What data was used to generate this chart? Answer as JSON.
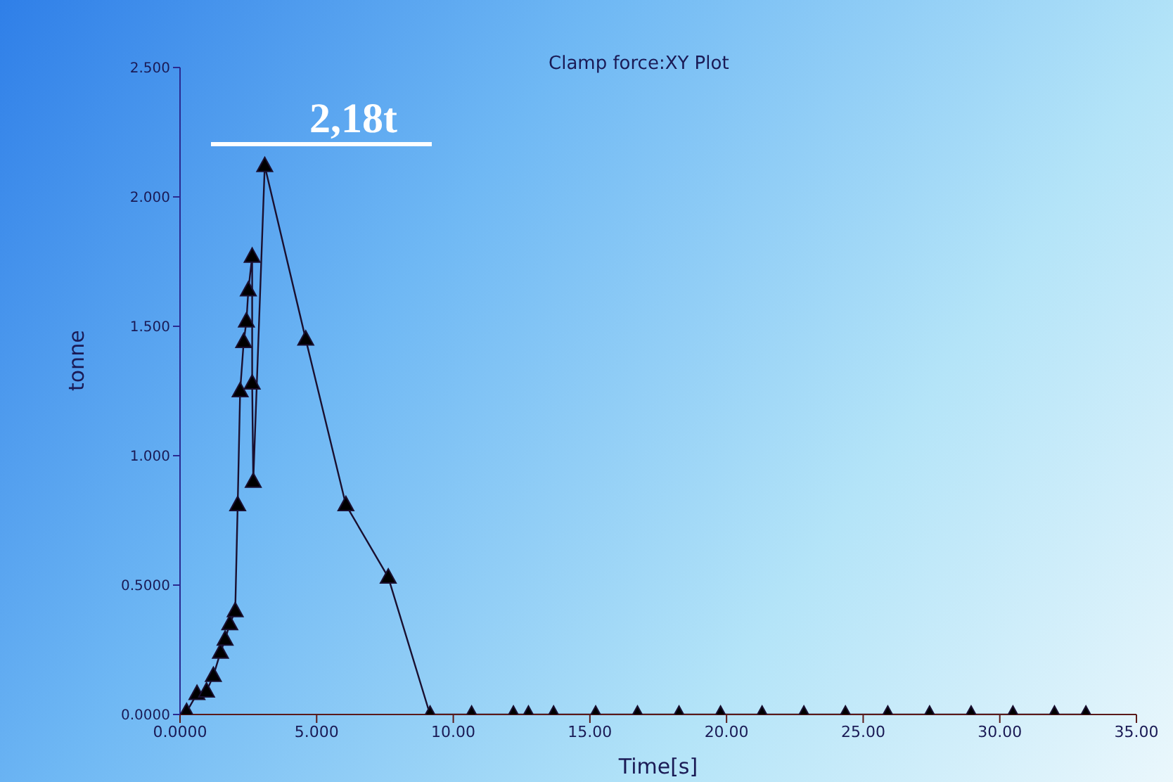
{
  "chart_data": {
    "type": "line",
    "title": "Clamp force:XY Plot",
    "xlabel": "Time[s]",
    "ylabel": "tonne",
    "x": [
      0.19,
      0.24,
      0.62,
      0.97,
      1.22,
      1.48,
      1.65,
      1.82,
      2.02,
      2.11,
      2.2,
      2.33,
      2.43,
      2.5,
      2.64,
      2.64,
      2.68,
      3.1,
      4.6,
      6.07,
      7.62,
      9.15,
      10.67,
      12.2,
      12.75,
      13.67,
      15.21,
      16.74,
      18.26,
      19.78,
      21.3,
      22.83,
      24.35,
      25.9,
      27.43,
      28.95,
      30.48,
      32,
      33.15
    ],
    "series": [
      {
        "color": "#1a1030",
        "values": [
          0,
          0.01,
          0.08,
          0.09,
          0.15,
          0.24,
          0.29,
          0.35,
          0.4,
          0.81,
          1.25,
          1.44,
          1.52,
          1.64,
          1.77,
          1.28,
          0.9,
          2.12,
          1.45,
          0.81,
          0.53,
          0,
          0,
          0,
          0,
          0,
          0,
          0,
          0,
          0,
          0,
          0,
          0,
          0,
          0,
          0,
          0,
          0,
          0
        ]
      }
    ],
    "xlim": [
      0,
      35
    ],
    "xticks": [
      {
        "value": 0,
        "label": "0.0000"
      },
      {
        "value": 5,
        "label": "5.000"
      },
      {
        "value": 10,
        "label": "10.00"
      },
      {
        "value": 15,
        "label": "15.00"
      },
      {
        "value": 20,
        "label": "20.00"
      },
      {
        "value": 25,
        "label": "25.00"
      },
      {
        "value": 30,
        "label": "30.00"
      },
      {
        "value": 35,
        "label": "35.00"
      }
    ],
    "ylim": [
      0,
      2.5
    ],
    "yticks": [
      {
        "value": 0,
        "label": "0.0000"
      },
      {
        "value": 0.5,
        "label": "0.5000"
      },
      {
        "value": 1,
        "label": "1.000"
      },
      {
        "value": 1.5,
        "label": "1.500"
      },
      {
        "value": 2,
        "label": "2.000"
      },
      {
        "value": 2.5,
        "label": "2.500"
      }
    ],
    "annotations": [
      "2,18t"
    ],
    "marker": "triangle",
    "grid": false,
    "legend": false
  }
}
